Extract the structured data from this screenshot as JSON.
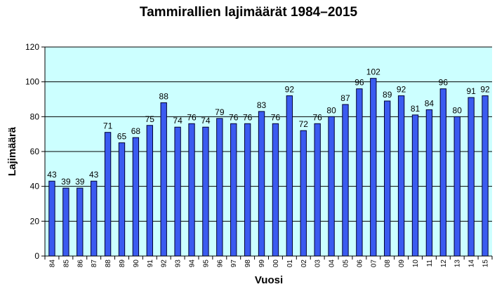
{
  "chart_data": {
    "type": "bar",
    "title": "Tammirallien lajimäärät 1984–2015",
    "xlabel": "Vuosi",
    "ylabel": "Lajimäärä",
    "ylim": [
      0,
      120
    ],
    "yticks": [
      0,
      20,
      40,
      60,
      80,
      100,
      120
    ],
    "grid": true,
    "legend": "none",
    "colors": {
      "bar": "#3a5bf0",
      "bar_edge": "#000033",
      "plot_background": "#ccffff",
      "gridline": "#000000"
    },
    "categories": [
      "84",
      "85",
      "86",
      "87",
      "88",
      "89",
      "90",
      "91",
      "92",
      "93",
      "94",
      "95",
      "96",
      "97",
      "98",
      "99",
      "00",
      "01",
      "02",
      "03",
      "04",
      "05",
      "06",
      "07",
      "08",
      "09",
      "10",
      "11",
      "12",
      "13",
      "14",
      "15"
    ],
    "values": [
      43,
      39,
      39,
      43,
      71,
      65,
      68,
      75,
      88,
      74,
      76,
      74,
      79,
      76,
      76,
      83,
      76,
      92,
      72,
      76,
      80,
      87,
      96,
      102,
      89,
      92,
      81,
      84,
      96,
      80,
      91,
      92
    ]
  }
}
